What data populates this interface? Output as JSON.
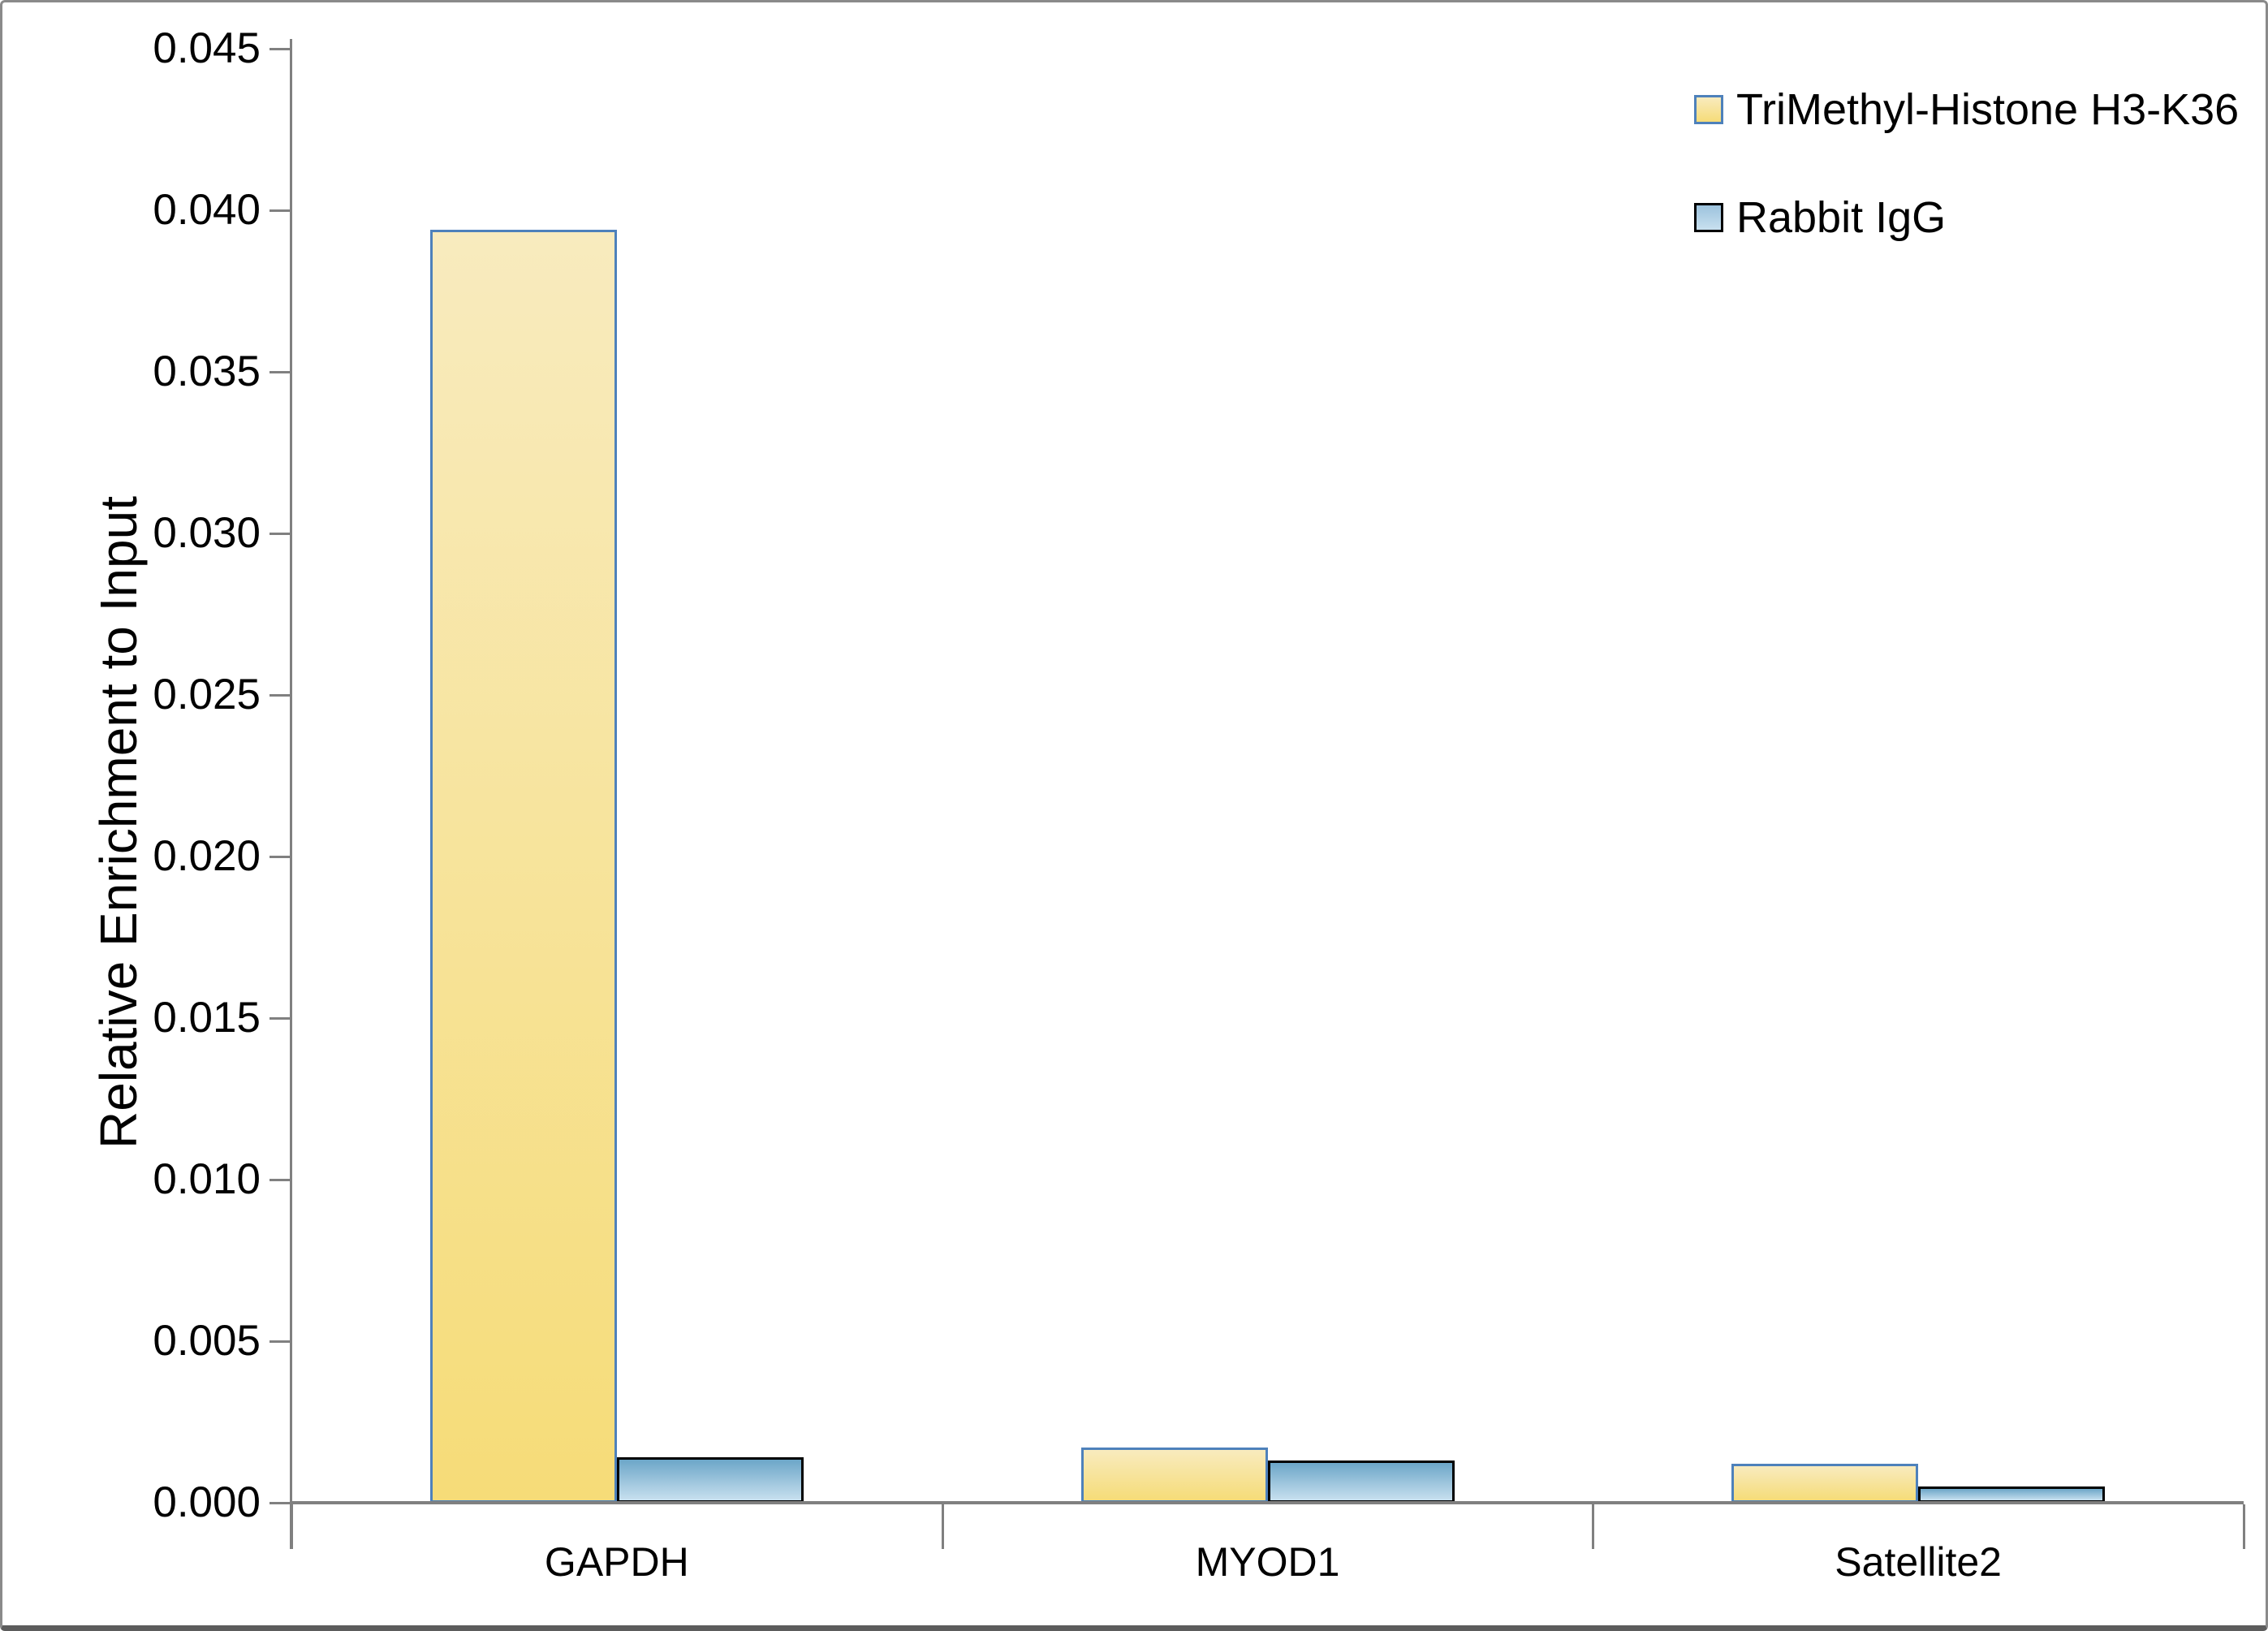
{
  "chart_data": {
    "type": "bar",
    "title": "",
    "xlabel": "",
    "ylabel": "Relative Enrichment to Input",
    "categories": [
      "GAPDH",
      "MYOD1",
      "Satellite2"
    ],
    "series": [
      {
        "name": "TriMethyl-Histone H3-K36",
        "values": [
          0.0394,
          0.0017,
          0.0012
        ],
        "fill_top": "#F8EBBE",
        "fill_bottom": "#F6DC78",
        "border_color": "#4E81BB"
      },
      {
        "name": "Rabbit IgG",
        "values": [
          0.0014,
          0.0013,
          0.0005
        ],
        "fill_top": "#6CA6C8",
        "fill_bottom": "#C8E0EF",
        "border_color": "#000000"
      }
    ],
    "ylim": [
      0,
      0.045
    ],
    "ytick_step": 0.005,
    "ytick_labels": [
      "0.000",
      "0.005",
      "0.010",
      "0.015",
      "0.020",
      "0.025",
      "0.030",
      "0.035",
      "0.040",
      "0.045"
    ],
    "grid": false,
    "legend_position": "top-right",
    "axis_color": "#808080"
  }
}
